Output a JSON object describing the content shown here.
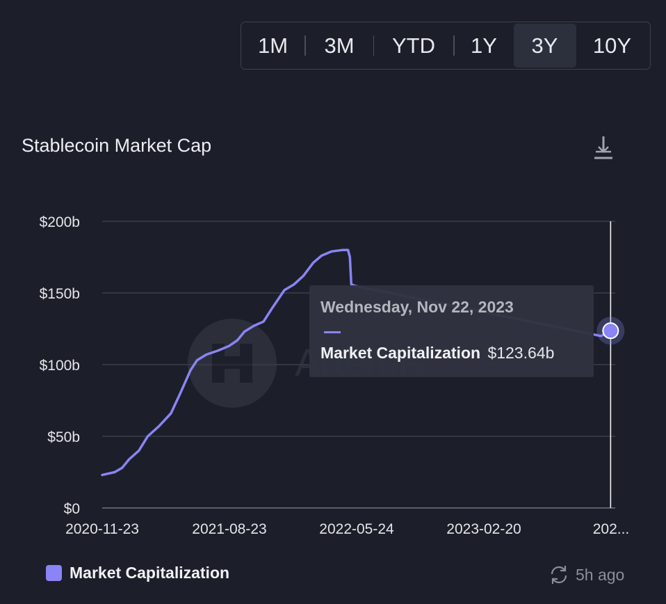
{
  "range_selector": {
    "options": [
      "1M",
      "3M",
      "YTD",
      "1Y",
      "3Y",
      "10Y"
    ],
    "selected": "3Y"
  },
  "card": {
    "title": "Stablecoin Market Cap",
    "download_icon": "download-icon"
  },
  "tooltip": {
    "date": "Wednesday, Nov 22, 2023",
    "series": "Market Capitalization",
    "value": "$123.64b"
  },
  "legend": {
    "label": "Market Capitalization",
    "color": "#8a84f6"
  },
  "footer": {
    "updated": "5h ago",
    "icon": "refresh-icon"
  },
  "watermark": {
    "text": "Artemis"
  },
  "chart_data": {
    "type": "line",
    "title": "Stablecoin Market Cap",
    "xlabel": "",
    "ylabel": "",
    "x_ticks": [
      "2020-11-23",
      "2021-08-23",
      "2022-05-24",
      "2023-02-20",
      "202..."
    ],
    "y_ticks": [
      "$0",
      "$50b",
      "$100b",
      "$150b",
      "$200b"
    ],
    "ylim": [
      0,
      200
    ],
    "y_unit": "$b",
    "grid": true,
    "legend_position": "bottom-left",
    "series": [
      {
        "name": "Market Capitalization",
        "color": "#8a84f6",
        "points": [
          [
            "2020-11-23",
            23
          ],
          [
            "2020-12-20",
            25
          ],
          [
            "2021-01-05",
            28
          ],
          [
            "2021-01-20",
            34
          ],
          [
            "2021-02-10",
            40
          ],
          [
            "2021-03-01",
            50
          ],
          [
            "2021-03-25",
            57
          ],
          [
            "2021-04-20",
            66
          ],
          [
            "2021-05-10",
            80
          ],
          [
            "2021-06-01",
            96
          ],
          [
            "2021-06-15",
            103
          ],
          [
            "2021-07-05",
            107
          ],
          [
            "2021-08-01",
            110
          ],
          [
            "2021-08-23",
            113
          ],
          [
            "2021-09-10",
            117
          ],
          [
            "2021-09-25",
            123
          ],
          [
            "2021-10-15",
            127
          ],
          [
            "2021-11-05",
            130
          ],
          [
            "2021-11-25",
            140
          ],
          [
            "2021-12-20",
            152
          ],
          [
            "2022-01-10",
            156
          ],
          [
            "2022-01-30",
            162
          ],
          [
            "2022-02-20",
            171
          ],
          [
            "2022-03-10",
            176
          ],
          [
            "2022-04-01",
            179
          ],
          [
            "2022-04-25",
            180
          ],
          [
            "2022-05-06",
            180
          ],
          [
            "2022-05-10",
            175
          ],
          [
            "2022-05-13",
            156
          ],
          [
            "2022-05-20",
            155
          ],
          [
            "2023-11-01",
            120
          ],
          [
            "2023-11-15",
            122
          ],
          [
            "2023-11-22",
            123.64
          ]
        ]
      }
    ]
  }
}
